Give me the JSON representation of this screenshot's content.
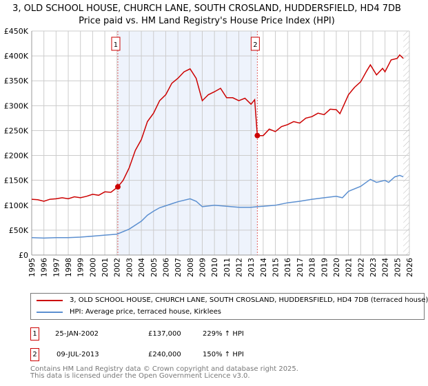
{
  "title": "3, OLD SCHOOL HOUSE, CHURCH LANE, SOUTH CROSLAND, HUDDERSFIELD, HD4 7DB",
  "subtitle": "Price paid vs. HM Land Registry's House Price Index (HPI)",
  "colors": {
    "property": "#cc0000",
    "hpi": "#5b8fd0",
    "shade": "#eef3fc"
  },
  "chart_data": {
    "type": "line",
    "xlim": [
      1995,
      2026
    ],
    "ylim": [
      0,
      450000
    ],
    "x_ticks": [
      "1995",
      "1996",
      "1997",
      "1998",
      "1999",
      "2000",
      "2001",
      "2002",
      "2003",
      "2004",
      "2005",
      "2006",
      "2007",
      "2008",
      "2009",
      "2010",
      "2011",
      "2012",
      "2013",
      "2014",
      "2015",
      "2016",
      "2017",
      "2018",
      "2019",
      "2020",
      "2021",
      "2022",
      "2023",
      "2024",
      "2025",
      "2026"
    ],
    "y_ticks": [
      {
        "v": 0,
        "label": "£0"
      },
      {
        "v": 50000,
        "label": "£50K"
      },
      {
        "v": 100000,
        "label": "£100K"
      },
      {
        "v": 150000,
        "label": "£150K"
      },
      {
        "v": 200000,
        "label": "£200K"
      },
      {
        "v": 250000,
        "label": "£250K"
      },
      {
        "v": 300000,
        "label": "£300K"
      },
      {
        "v": 350000,
        "label": "£350K"
      },
      {
        "v": 400000,
        "label": "£400K"
      },
      {
        "v": 450000,
        "label": "£450K"
      }
    ],
    "shaded_range": [
      2002.07,
      2013.52
    ],
    "forecast_from": 2025.5,
    "series": [
      {
        "name": "3, OLD SCHOOL HOUSE, CHURCH LANE, SOUTH CROSLAND, HUDDERSFIELD, HD4 7DB (terraced house)",
        "color": "#cc0000",
        "x": [
          1995,
          1995.5,
          1996,
          1996.5,
          1997,
          1997.5,
          1998,
          1998.5,
          1999,
          1999.5,
          2000,
          2000.5,
          2001,
          2001.5,
          2002.07,
          2002.5,
          2003,
          2003.5,
          2004,
          2004.5,
          2005,
          2005.5,
          2006,
          2006.5,
          2007,
          2007.5,
          2008,
          2008.5,
          2009,
          2009.5,
          2010,
          2010.5,
          2011,
          2011.5,
          2012,
          2012.5,
          2013,
          2013.3,
          2013.52,
          2014,
          2014.5,
          2015,
          2015.5,
          2016,
          2016.5,
          2017,
          2017.5,
          2018,
          2018.5,
          2019,
          2019.5,
          2020,
          2020.3,
          2020.6,
          2021,
          2021.5,
          2022,
          2022.5,
          2022.8,
          2023.3,
          2023.8,
          2024,
          2024.5,
          2025,
          2025.2,
          2025.5
        ],
        "y": [
          112000,
          111000,
          108000,
          112000,
          113000,
          115000,
          113000,
          117000,
          115000,
          118000,
          122000,
          120000,
          127000,
          126000,
          137000,
          150000,
          175000,
          210000,
          232000,
          268000,
          285000,
          310000,
          322000,
          345000,
          355000,
          368000,
          374000,
          355000,
          310000,
          322000,
          328000,
          335000,
          316000,
          316000,
          310000,
          315000,
          303000,
          312000,
          240000,
          240000,
          253000,
          248000,
          258000,
          262000,
          268000,
          265000,
          275000,
          278000,
          285000,
          282000,
          293000,
          292000,
          284000,
          300000,
          322000,
          337000,
          348000,
          370000,
          382000,
          362000,
          375000,
          368000,
          392000,
          395000,
          402000,
          395000
        ]
      },
      {
        "name": "HPI: Average price, terraced house, Kirklees",
        "color": "#5b8fd0",
        "x": [
          1995,
          1996,
          1997,
          1998,
          1999,
          2000,
          2001,
          2002,
          2003,
          2004,
          2004.5,
          2005,
          2005.5,
          2006,
          2007,
          2008,
          2008.5,
          2009,
          2010,
          2011,
          2012,
          2013,
          2013.5,
          2014,
          2015,
          2016,
          2017,
          2018,
          2019,
          2020,
          2020.5,
          2021,
          2022,
          2022.8,
          2023.3,
          2024,
          2024.3,
          2024.8,
          2025.2,
          2025.5
        ],
        "y": [
          35000,
          34000,
          35000,
          35000,
          36000,
          38000,
          40000,
          42000,
          52000,
          68000,
          80000,
          88000,
          95000,
          99000,
          107000,
          113000,
          108000,
          97000,
          100000,
          98000,
          96000,
          96000,
          97000,
          98000,
          100000,
          105000,
          108000,
          112000,
          115000,
          118000,
          115000,
          128000,
          138000,
          152000,
          146000,
          150000,
          146000,
          157000,
          160000,
          157000
        ]
      }
    ],
    "markers": [
      {
        "label": "1",
        "x": 2002.07,
        "y": 137000
      },
      {
        "label": "2",
        "x": 2013.52,
        "y": 240000
      }
    ]
  },
  "legend": {
    "property": "3, OLD SCHOOL HOUSE, CHURCH LANE, SOUTH CROSLAND, HUDDERSFIELD, HD4 7DB (terraced house)",
    "hpi": "HPI: Average price, terraced house, Kirklees"
  },
  "transactions": [
    {
      "num": "1",
      "date": "25-JAN-2002",
      "price": "£137,000",
      "hpi": "229% ↑ HPI"
    },
    {
      "num": "2",
      "date": "09-JUL-2013",
      "price": "£240,000",
      "hpi": "150% ↑ HPI"
    }
  ],
  "footer": {
    "line1": "Contains HM Land Registry data © Crown copyright and database right 2025.",
    "line2": "This data is licensed under the Open Government Licence v3.0."
  }
}
